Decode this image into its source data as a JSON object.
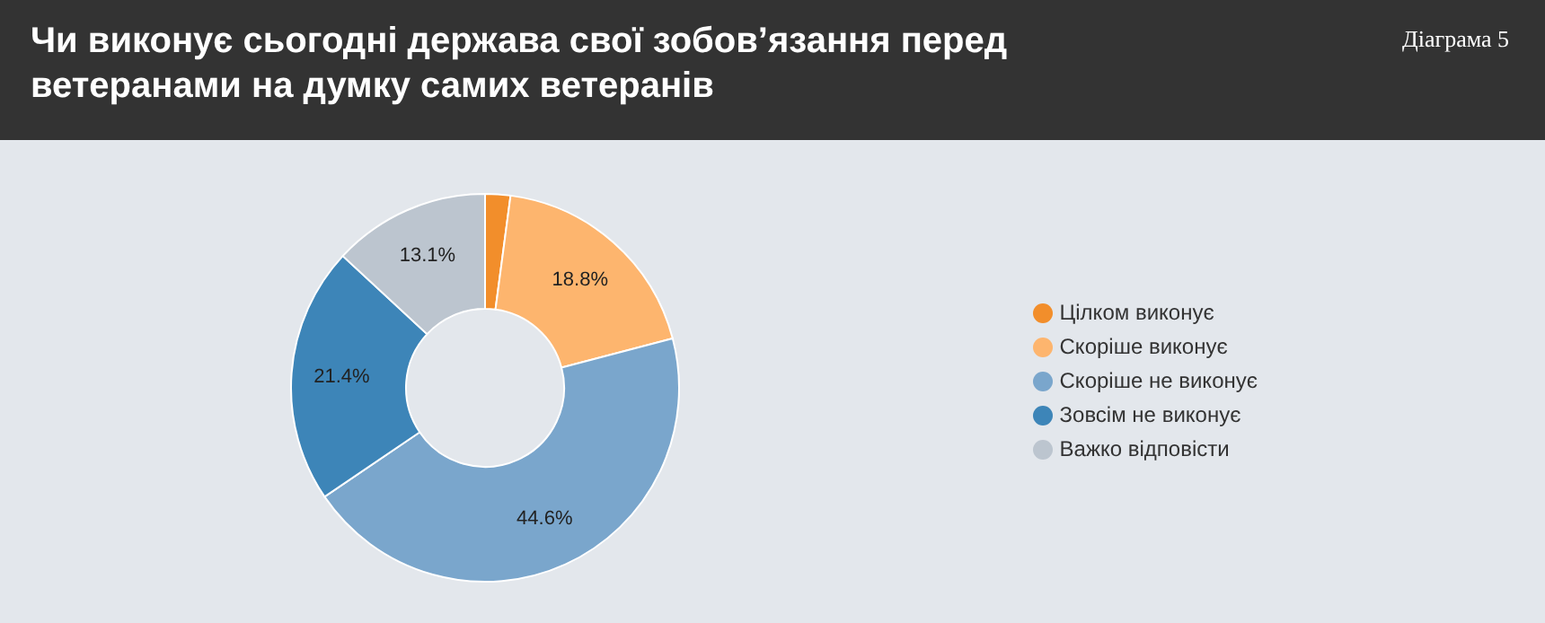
{
  "chart_data": {
    "type": "donut",
    "title": "Чи виконує сьогодні держава свої зобов’язання перед ветеранами на думку самих ветеранів",
    "subtitle": "Діаграма 5",
    "categories": [
      "Цілком виконує",
      "Скоріше виконує",
      "Скоріше не виконує",
      "Зовсім не виконує",
      "Важко відповісти"
    ],
    "values": [
      2.1,
      18.8,
      44.6,
      21.4,
      13.1
    ],
    "value_labels": [
      null,
      "18.8%",
      "44.6%",
      "21.4%",
      "13.1%"
    ],
    "colors": [
      "#f28e2b",
      "#fdb56e",
      "#7aa6cc",
      "#3d85b8",
      "#bcc5cf"
    ],
    "legend": "right"
  }
}
